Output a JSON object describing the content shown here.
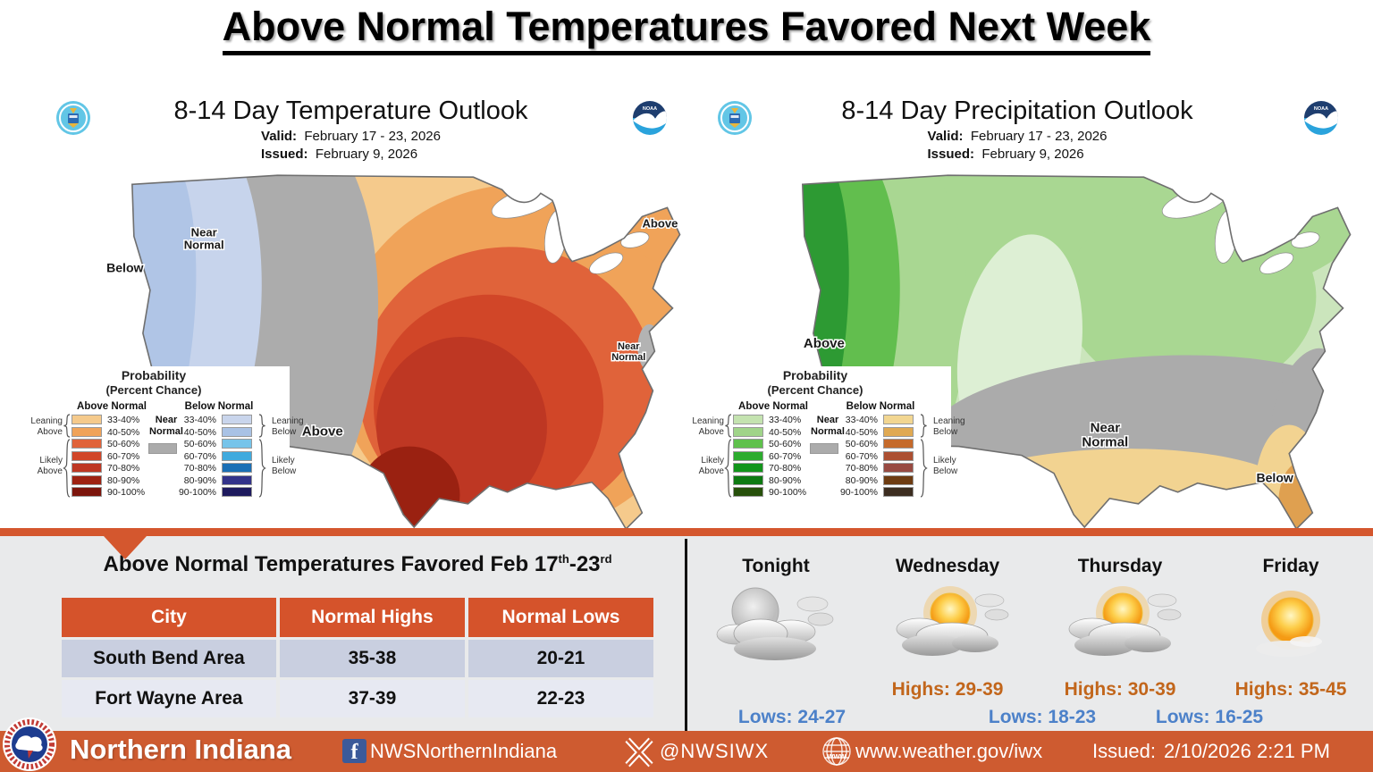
{
  "page_title": "Above Normal Temperatures Favored Next Week",
  "legend_common": {
    "title1": "Probability",
    "title2": "(Percent Chance)",
    "above_header": "Above Normal",
    "below_header": "Below Normal",
    "near_label": "Near\nNormal",
    "near_color": "#ABABAB",
    "ranges": [
      "33-40%",
      "40-50%",
      "50-60%",
      "60-70%",
      "70-80%",
      "80-90%",
      "90-100%"
    ],
    "leaning_above": "Leaning\nAbove",
    "likely_above": "Likely\nAbove",
    "leaning_below": "Leaning\nBelow",
    "likely_below": "Likely\nBelow"
  },
  "maps": [
    {
      "title": "8-14 Day Temperature Outlook",
      "valid_label": "Valid:",
      "valid": "February 17 - 23, 2026",
      "issued_label": "Issued:",
      "issued": "February 9, 2026",
      "labels": [
        "Below",
        "Near\nNormal",
        "Above",
        "Above",
        "Near\nNormal"
      ],
      "legend": {
        "above_colors": [
          "#F5CA8C",
          "#F0A359",
          "#E0633A",
          "#D14628",
          "#BE3723",
          "#9E2212",
          "#7C150C"
        ],
        "below_colors": [
          "#C9D5EC",
          "#A9C2E5",
          "#76C4EA",
          "#3FAADE",
          "#1A6FB5",
          "#33338A",
          "#1E1A5E"
        ]
      },
      "fills": {
        "base": "#F5CA8C",
        "l2": "#F0A359",
        "l3": "#E0633A",
        "l4": "#D14628",
        "l5": "#BE3723",
        "l6": "#9A2111",
        "maine": "#F0A359",
        "gray": "#ACACAC",
        "blue1": "#C7D4EC",
        "blue2": "#B0C5E6",
        "njgray": "#B3B3B3"
      }
    },
    {
      "title": "8-14 Day Precipitation Outlook",
      "valid_label": "Valid:",
      "valid": "February 17 - 23, 2026",
      "issued_label": "Issued:",
      "issued": "February 9, 2026",
      "labels": [
        "Above",
        "Near\nNormal",
        "Below"
      ],
      "legend": {
        "above_colors": [
          "#C4E3B0",
          "#A0D489",
          "#5FC14C",
          "#2CAC2E",
          "#12951B",
          "#0E7A12",
          "#27500B"
        ],
        "below_colors": [
          "#F2D691",
          "#E0A952",
          "#C56A2B",
          "#AC4F31",
          "#984A42",
          "#6E3C12",
          "#3C2D20"
        ]
      },
      "fills": {
        "base": "#CBE5BC",
        "band": "#A9D792",
        "pale": "#DDEFD4",
        "green1": "#62BE4E",
        "green2": "#2D9A33",
        "gray": "#ABABAB",
        "tan": "#F2D391",
        "fl": "#DFA050"
      }
    }
  ],
  "summary": {
    "title_pre": "Above Normal Temperatures Favored Feb 17",
    "title_sup1": "th",
    "title_mid": "-23",
    "title_sup2": "rd",
    "table": {
      "headers": [
        "City",
        "Normal Highs",
        "Normal Lows"
      ],
      "rows": [
        [
          "South Bend Area",
          "35-38",
          "20-21"
        ],
        [
          "Fort Wayne Area",
          "37-39",
          "22-23"
        ]
      ]
    }
  },
  "forecast": {
    "days": [
      {
        "name": "Tonight",
        "icon": "cloudy-night"
      },
      {
        "name": "Wednesday",
        "icon": "sun-clouds",
        "high": "Highs: 29-39"
      },
      {
        "name": "Thursday",
        "icon": "sun-clouds",
        "high": "Highs: 30-39"
      },
      {
        "name": "Friday",
        "icon": "mostly-sunny",
        "high": "Highs: 35-45"
      }
    ],
    "lows": [
      "Lows: 24-27",
      "Lows: 18-23",
      "Lows: 16-25"
    ],
    "high_color": "#C2661B",
    "low_color": "#4C81C9"
  },
  "footer": {
    "office": "Northern Indiana",
    "facebook_icon_letter": "f",
    "facebook": "NWSNorthernIndiana",
    "twitter": "@NWSIWX",
    "website": "www.weather.gov/iwx",
    "issued_label": "Issued:",
    "issued_value": "2/10/2026 2:21 PM",
    "bar_color": "#CE5B30"
  }
}
